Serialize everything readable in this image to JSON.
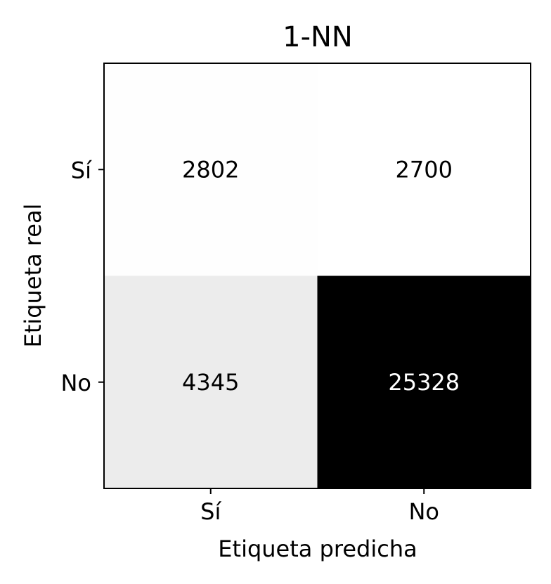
{
  "chart_data": {
    "type": "heatmap",
    "title": "1-NN",
    "xlabel": "Etiqueta predicha",
    "ylabel": "Etiqueta real",
    "x_categories": [
      "Sí",
      "No"
    ],
    "y_categories": [
      "Sí",
      "No"
    ],
    "values": [
      [
        2802,
        2700
      ],
      [
        4345,
        25328
      ]
    ],
    "colormap": "greys",
    "colors": {
      "low": "#ffffff",
      "high": "#000000"
    },
    "grid": false,
    "legend": "none"
  }
}
